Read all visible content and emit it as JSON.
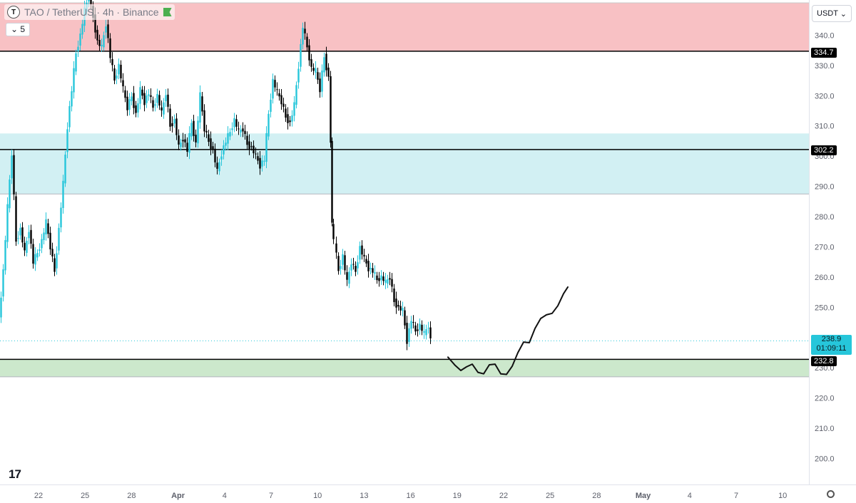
{
  "header": {
    "symbol_icon": "T",
    "title": "TAO / TetherUS · 4h · Binance",
    "indicator_count": "5",
    "currency": "USDT",
    "flag_color": "#4caf50"
  },
  "colors": {
    "bull": "#26c6da",
    "bear": "#000000",
    "resistance_zone": "#f8c1c4",
    "mid_zone": "#d2f0f3",
    "support_zone": "#cce8cc",
    "last_price": "#26c6da"
  },
  "chart_data": {
    "type": "candlestick",
    "title": "TAO / TetherUS · 4h · Binance",
    "ylim": [
      193,
      355
    ],
    "y_ticks": [
      200,
      210,
      220,
      230,
      240,
      250,
      260,
      270,
      280,
      290,
      300,
      310,
      320,
      330,
      340
    ],
    "x_ticks": [
      "22",
      "25",
      "28",
      "Apr",
      "4",
      "7",
      "10",
      "13",
      "16",
      "19",
      "22",
      "25",
      "28",
      "May",
      "4",
      "7",
      "10"
    ],
    "horizontal_levels": [
      334.7,
      302.2,
      232.8
    ],
    "level_labels": [
      "334.7",
      "302.2",
      "232.8"
    ],
    "zones": [
      {
        "name": "resistance",
        "from": 334.7,
        "to": 355,
        "color": "#f8c1c4"
      },
      {
        "name": "mid",
        "from": 287.5,
        "to": 307.5,
        "color": "#d2f0f3"
      },
      {
        "name": "support",
        "from": 227,
        "to": 232.8,
        "color": "#cce8cc"
      }
    ],
    "last_price": "238.9",
    "countdown": "01:09:11",
    "close_path": [
      [
        0,
        246
      ],
      [
        6,
        262
      ],
      [
        12,
        283
      ],
      [
        18,
        301
      ],
      [
        24,
        272
      ],
      [
        30,
        276
      ],
      [
        36,
        268
      ],
      [
        42,
        276
      ],
      [
        48,
        265
      ],
      [
        54,
        268
      ],
      [
        60,
        272
      ],
      [
        66,
        278
      ],
      [
        72,
        270
      ],
      [
        78,
        262
      ],
      [
        84,
        276
      ],
      [
        90,
        291
      ],
      [
        96,
        310
      ],
      [
        102,
        322
      ],
      [
        108,
        334
      ],
      [
        114,
        340
      ],
      [
        120,
        348
      ],
      [
        126,
        353
      ],
      [
        132,
        346
      ],
      [
        138,
        338
      ],
      [
        144,
        336
      ],
      [
        150,
        344
      ],
      [
        156,
        333
      ],
      [
        162,
        325
      ],
      [
        168,
        330
      ],
      [
        174,
        322
      ],
      [
        180,
        316
      ],
      [
        186,
        320
      ],
      [
        192,
        314
      ],
      [
        198,
        322
      ],
      [
        204,
        318
      ],
      [
        210,
        321
      ],
      [
        216,
        316
      ],
      [
        222,
        320
      ],
      [
        228,
        314
      ],
      [
        234,
        321
      ],
      [
        240,
        310
      ],
      [
        246,
        312
      ],
      [
        252,
        303
      ],
      [
        258,
        306
      ],
      [
        264,
        302
      ],
      [
        270,
        311
      ],
      [
        276,
        304
      ],
      [
        282,
        320
      ],
      [
        288,
        309
      ],
      [
        294,
        305
      ],
      [
        300,
        302
      ],
      [
        306,
        295
      ],
      [
        312,
        301
      ],
      [
        318,
        305
      ],
      [
        324,
        308
      ],
      [
        330,
        312
      ],
      [
        336,
        308
      ],
      [
        342,
        309
      ],
      [
        348,
        304
      ],
      [
        354,
        303
      ],
      [
        360,
        300
      ],
      [
        366,
        297
      ],
      [
        372,
        299
      ],
      [
        378,
        314
      ],
      [
        384,
        325
      ],
      [
        390,
        321
      ],
      [
        396,
        318
      ],
      [
        402,
        313
      ],
      [
        408,
        311
      ],
      [
        414,
        317
      ],
      [
        420,
        330
      ],
      [
        426,
        343
      ],
      [
        432,
        336
      ],
      [
        438,
        329
      ],
      [
        444,
        328
      ],
      [
        450,
        322
      ],
      [
        456,
        333
      ],
      [
        462,
        326
      ],
      [
        464,
        305
      ],
      [
        466,
        278
      ],
      [
        470,
        272
      ],
      [
        476,
        262
      ],
      [
        482,
        267
      ],
      [
        488,
        258
      ],
      [
        494,
        265
      ],
      [
        500,
        262
      ],
      [
        506,
        270
      ],
      [
        512,
        266
      ],
      [
        518,
        263
      ],
      [
        524,
        262
      ],
      [
        530,
        259
      ],
      [
        536,
        260
      ],
      [
        542,
        258
      ],
      [
        548,
        260
      ],
      [
        554,
        252
      ],
      [
        560,
        250
      ],
      [
        566,
        249
      ],
      [
        572,
        239
      ],
      [
        578,
        246
      ],
      [
        584,
        242
      ],
      [
        590,
        244
      ],
      [
        596,
        241
      ],
      [
        602,
        244
      ],
      [
        606,
        238.9
      ]
    ],
    "projection_path": [
      [
        628,
        233.5
      ],
      [
        638,
        230.8
      ],
      [
        646,
        229.1
      ],
      [
        654,
        230.3
      ],
      [
        662,
        231.2
      ],
      [
        670,
        228.5
      ],
      [
        678,
        228.0
      ],
      [
        686,
        231.0
      ],
      [
        694,
        231.2
      ],
      [
        702,
        228.0
      ],
      [
        710,
        227.8
      ],
      [
        718,
        230.5
      ],
      [
        726,
        235.0
      ],
      [
        734,
        238.5
      ],
      [
        742,
        238.3
      ],
      [
        750,
        243.0
      ],
      [
        758,
        246.3
      ],
      [
        766,
        247.5
      ],
      [
        774,
        248.0
      ],
      [
        782,
        250.5
      ],
      [
        790,
        254.5
      ],
      [
        796,
        256.7
      ]
    ]
  }
}
